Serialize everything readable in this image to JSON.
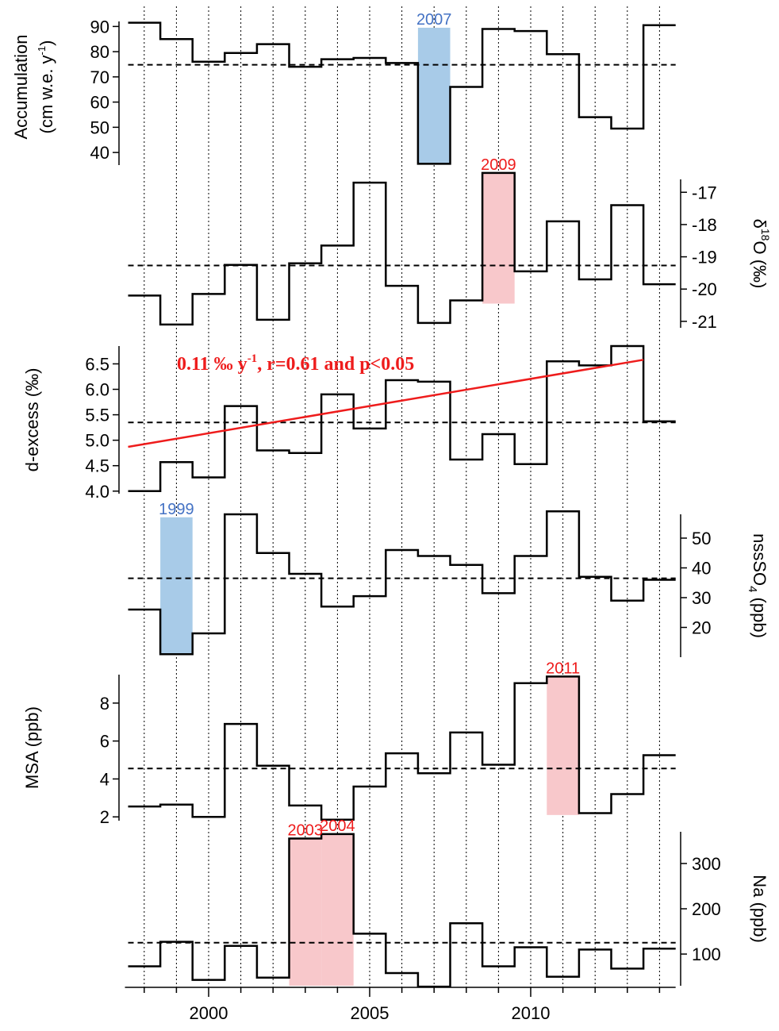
{
  "chart_data": {
    "type": "line",
    "x_axis": {
      "ticks": [
        2000,
        2005,
        2010
      ],
      "tick_labels": [
        "2000",
        "2005",
        "2010"
      ],
      "range": [
        1997.5,
        2014.5
      ]
    },
    "year_gridlines": [
      1998,
      1999,
      2000,
      2001,
      2002,
      2003,
      2004,
      2005,
      2006,
      2007,
      2008,
      2009,
      2010,
      2011,
      2012,
      2013,
      2014
    ],
    "panels": [
      {
        "key": "accumulation",
        "ylabel_line1": "Accumulation",
        "ylabel_line2": "(cm w.e. y",
        "ylabel_sup": "-1",
        "ylabel_tail": ")",
        "axis_side": "left",
        "ylim": [
          35,
          92
        ],
        "yticks": [
          40,
          50,
          60,
          70,
          80,
          90
        ],
        "mean": 74.8,
        "steps": [
          [
            1997.5,
            91.5
          ],
          [
            1998.5,
            85
          ],
          [
            1999.5,
            76
          ],
          [
            2000.5,
            79.5
          ],
          [
            2001.5,
            83
          ],
          [
            2002.5,
            74
          ],
          [
            2003.5,
            77
          ],
          [
            2004.5,
            77.5
          ],
          [
            2005.5,
            75.5
          ],
          [
            2006.5,
            35.5
          ],
          [
            2007.5,
            66
          ],
          [
            2008.5,
            89
          ],
          [
            2009.5,
            88.2
          ],
          [
            2010.5,
            79
          ],
          [
            2011.5,
            54
          ],
          [
            2012.5,
            49.5
          ],
          [
            2013.5,
            90.5
          ]
        ],
        "highlights": [
          {
            "year": 2007,
            "label": "2007",
            "color": "#a8cbe8",
            "label_color": "#4472c4",
            "bottom": 35.5,
            "top": 89.5
          }
        ]
      },
      {
        "key": "d18o",
        "ylabel": "δ18O (‰)",
        "ylabel_delta": "δ",
        "ylabel_sup": "18",
        "ylabel_rest": "O (‰)",
        "axis_side": "right",
        "ylim": [
          -21.2,
          -16.6
        ],
        "yticks": [
          -17,
          -18,
          -19,
          -20,
          -21
        ],
        "mean": -19.27,
        "steps": [
          [
            1997.5,
            -20.2
          ],
          [
            1998.5,
            -21.1
          ],
          [
            1999.5,
            -20.15
          ],
          [
            2000.5,
            -19.25
          ],
          [
            2001.5,
            -20.95
          ],
          [
            2002.5,
            -19.2
          ],
          [
            2003.5,
            -18.65
          ],
          [
            2004.5,
            -16.7
          ],
          [
            2005.5,
            -19.9
          ],
          [
            2006.5,
            -21.05
          ],
          [
            2007.5,
            -20.35
          ],
          [
            2008.5,
            -16.4
          ],
          [
            2009.5,
            -19.45
          ],
          [
            2010.5,
            -17.9
          ],
          [
            2011.5,
            -19.7
          ],
          [
            2012.5,
            -17.4
          ],
          [
            2013.5,
            -19.85
          ]
        ],
        "highlights": [
          {
            "year": 2009,
            "label": "2009",
            "color": "#f8c8cb",
            "label_color": "#ee1c1c",
            "bottom": -20.45,
            "top": -16.4
          }
        ]
      },
      {
        "key": "dexcess",
        "ylabel": "d-excess (‰)",
        "axis_side": "left",
        "ylim": [
          3.95,
          6.85
        ],
        "yticks": [
          4.0,
          4.5,
          5.0,
          5.5,
          6.0,
          6.5
        ],
        "ytick_labels": [
          "4.0",
          "4.5",
          "5.0",
          "5.5",
          "6.0",
          "6.5"
        ],
        "mean": 5.35,
        "steps": [
          [
            1997.5,
            4.0
          ],
          [
            1998.5,
            4.57
          ],
          [
            1999.5,
            4.27
          ],
          [
            2000.5,
            5.67
          ],
          [
            2001.5,
            4.8
          ],
          [
            2002.5,
            4.75
          ],
          [
            2003.5,
            5.9
          ],
          [
            2004.5,
            5.23
          ],
          [
            2005.5,
            6.18
          ],
          [
            2006.5,
            6.15
          ],
          [
            2007.5,
            4.62
          ],
          [
            2008.5,
            5.12
          ],
          [
            2009.5,
            4.53
          ],
          [
            2010.5,
            6.55
          ],
          [
            2011.5,
            6.47
          ],
          [
            2012.5,
            6.85
          ],
          [
            2013.5,
            5.37
          ]
        ],
        "trend": {
          "x": [
            1997.5,
            2013.5
          ],
          "y": [
            4.87,
            6.58
          ],
          "color": "#ee1c1c"
        },
        "annotation_pre": "0.11 ‰ y",
        "annotation_sup": "-1",
        "annotation_post": ", r=0.61 and p<0.05",
        "highlights": []
      },
      {
        "key": "nsso4",
        "ylabel_pre": "nssSO",
        "ylabel_sub": "4",
        "ylabel_post": " (ppb)",
        "axis_side": "right",
        "ylim": [
          10,
          58
        ],
        "yticks": [
          20,
          30,
          40,
          50
        ],
        "mean": 36.5,
        "steps": [
          [
            1997.5,
            26
          ],
          [
            1998.5,
            11
          ],
          [
            1999.5,
            18
          ],
          [
            2000.5,
            58
          ],
          [
            2001.5,
            45
          ],
          [
            2002.5,
            38
          ],
          [
            2003.5,
            27
          ],
          [
            2004.5,
            30.5
          ],
          [
            2005.5,
            46
          ],
          [
            2006.5,
            44
          ],
          [
            2007.5,
            41
          ],
          [
            2008.5,
            31.5
          ],
          [
            2009.5,
            44
          ],
          [
            2010.5,
            59
          ],
          [
            2011.5,
            37
          ],
          [
            2012.5,
            29
          ],
          [
            2013.5,
            36
          ]
        ],
        "highlights": [
          {
            "year": 1999,
            "label": "1999",
            "color": "#a8cbe8",
            "label_color": "#4472c4",
            "bottom": 11,
            "top": 57
          }
        ]
      },
      {
        "key": "msa",
        "ylabel": "MSA (ppb)",
        "axis_side": "left",
        "ylim": [
          1.8,
          9.5
        ],
        "yticks": [
          2,
          4,
          6,
          8
        ],
        "mean": 4.55,
        "steps": [
          [
            1997.5,
            2.55
          ],
          [
            1998.5,
            2.65
          ],
          [
            1999.5,
            2.0
          ],
          [
            2000.5,
            6.9
          ],
          [
            2001.5,
            4.7
          ],
          [
            2002.5,
            2.6
          ],
          [
            2003.5,
            1.85
          ],
          [
            2004.5,
            3.6
          ],
          [
            2005.5,
            5.35
          ],
          [
            2006.5,
            4.3
          ],
          [
            2007.5,
            6.45
          ],
          [
            2008.5,
            4.75
          ],
          [
            2009.5,
            9.05
          ],
          [
            2010.5,
            9.4
          ],
          [
            2011.5,
            2.2
          ],
          [
            2012.5,
            3.2
          ],
          [
            2013.5,
            5.25
          ]
        ],
        "highlights": [
          {
            "year": 2011,
            "label": "2011",
            "color": "#f8c8cb",
            "label_color": "#ee1c1c",
            "bottom": 2.1,
            "top": 9.4
          }
        ]
      },
      {
        "key": "na",
        "ylabel": "Na (ppb)",
        "axis_side": "right",
        "ylim": [
          30,
          370
        ],
        "yticks": [
          100,
          200,
          300
        ],
        "mean": 125,
        "steps": [
          [
            1997.5,
            73
          ],
          [
            1998.5,
            127
          ],
          [
            1999.5,
            43
          ],
          [
            2000.5,
            118
          ],
          [
            2001.5,
            48
          ],
          [
            2002.5,
            355
          ],
          [
            2003.5,
            365
          ],
          [
            2004.5,
            145
          ],
          [
            2005.5,
            58
          ],
          [
            2006.5,
            28
          ],
          [
            2007.5,
            168
          ],
          [
            2008.5,
            73
          ],
          [
            2009.5,
            115
          ],
          [
            2010.5,
            50
          ],
          [
            2011.5,
            110
          ],
          [
            2012.5,
            68
          ],
          [
            2013.5,
            112
          ]
        ],
        "highlights": [
          {
            "year": 2003,
            "label": "2003",
            "color": "#f8c8cb",
            "label_color": "#ee1c1c",
            "bottom": 30,
            "top": 355
          },
          {
            "year": 2004,
            "label": "2004",
            "color": "#f8c8cb",
            "label_color": "#ee1c1c",
            "bottom": 30,
            "top": 365
          }
        ]
      }
    ]
  }
}
